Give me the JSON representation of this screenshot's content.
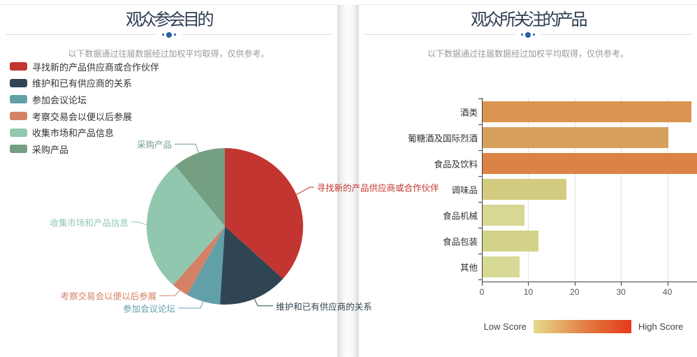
{
  "accent_color": "#2a5cab",
  "chart_data": [
    {
      "type": "pie",
      "title": "观众参会目的",
      "subtitle": "以下数据通过往届数据经过加权平均取得，仅供参考。",
      "unit": "percent (estimated from slice angles)",
      "labels": [
        "寻找新的产品供应商或合作伙伴",
        "维护和已有供应商的关系",
        "参加会议论坛",
        "考察交易会以便以后参展",
        "收集市场和产品信息",
        "采购产品"
      ],
      "values": [
        36.7,
        14.3,
        7.0,
        3.5,
        27.6,
        10.9
      ],
      "colors": [
        "#c23531",
        "#2f4554",
        "#61a0a8",
        "#d48265",
        "#91c7ae",
        "#749f83"
      ],
      "legend_position": "top-left"
    },
    {
      "type": "bar",
      "orientation": "horizontal",
      "title": "观众所关注的产品",
      "subtitle": "以下数据通过往届数据经过加权平均取得，仅供参考。",
      "categories": [
        "酒类",
        "葡糖酒及国际烈酒",
        "食品及饮料",
        "调味品",
        "食品机械",
        "食品包装",
        "其他"
      ],
      "values": [
        45,
        40,
        47,
        18,
        9,
        12,
        8
      ],
      "bar_colors": [
        "#dc9551",
        "#d8a05f",
        "#db8347",
        "#d3cc80",
        "#d6d893",
        "#d2d289",
        "#d7da95"
      ],
      "xlim": [
        0,
        47
      ],
      "x_ticks": [
        0,
        10,
        20,
        30,
        40
      ],
      "grid": true,
      "visual_map": {
        "low_label": "Low Score",
        "high_label": "High Score",
        "gradient_colors": [
          "#e5da8b",
          "#e2733b",
          "#e6391b"
        ]
      }
    }
  ]
}
